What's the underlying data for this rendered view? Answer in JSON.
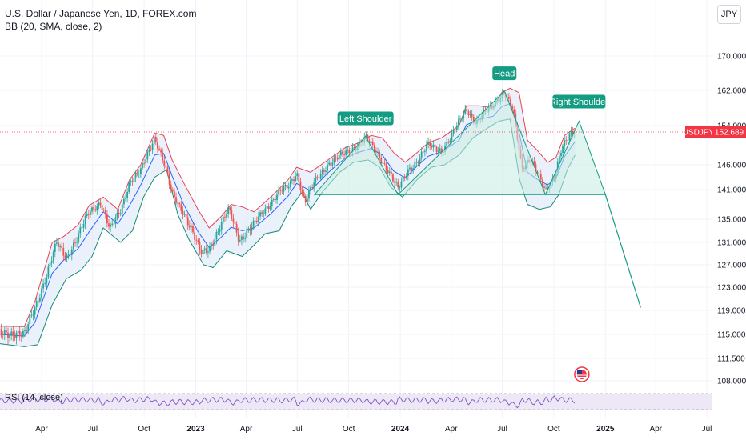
{
  "legend": {
    "title": "U.S. Dollar / Japanese Yen, 1D, FOREX.com",
    "indicator": "BB (20, SMA, close, 2)"
  },
  "currency": "JPY",
  "price_tag": {
    "symbol": "USDJPY",
    "value": "152.689"
  },
  "rsi_label": "RSI (14, close)",
  "colors": {
    "upper_band": "#e8424f",
    "lower_band": "#138a76",
    "basis": "#2962ff",
    "band_fill": "#e3ecf9",
    "candle_up": "#26a69a",
    "candle_down": "#ef5350",
    "pattern": "#149c82",
    "pattern_fill": "#c8ece3",
    "rsi_line": "#7e57c2",
    "rsi_band": "#ede7f6",
    "price_tag": "#f23645"
  },
  "chart_data": {
    "type": "line",
    "title": "U.S. Dollar / Japanese Yen, 1D, FOREX.com",
    "y_axis_ticks": [
      "170.000",
      "162.000",
      "154.000",
      "146.000",
      "141.000",
      "135.000",
      "131.000",
      "127.000",
      "123.000",
      "119.000",
      "115.000",
      "111.500",
      "108.000"
    ],
    "x_axis_ticks": [
      {
        "label": "Apr",
        "date": "2022-04-01",
        "bold": false
      },
      {
        "label": "Jul",
        "date": "2022-07-01",
        "bold": false
      },
      {
        "label": "Oct",
        "date": "2022-10-01",
        "bold": false
      },
      {
        "label": "2023",
        "date": "2023-01-01",
        "bold": true
      },
      {
        "label": "Apr",
        "date": "2023-04-01",
        "bold": false
      },
      {
        "label": "Jul",
        "date": "2023-07-01",
        "bold": false
      },
      {
        "label": "Oct",
        "date": "2023-10-01",
        "bold": false
      },
      {
        "label": "2024",
        "date": "2024-01-01",
        "bold": true
      },
      {
        "label": "Apr",
        "date": "2024-04-01",
        "bold": false
      },
      {
        "label": "Jul",
        "date": "2024-07-01",
        "bold": false
      },
      {
        "label": "Oct",
        "date": "2024-10-01",
        "bold": false
      },
      {
        "label": "2025",
        "date": "2025-01-01",
        "bold": true
      },
      {
        "label": "Apr",
        "date": "2025-04-01",
        "bold": false
      },
      {
        "label": "Jul",
        "date": "2025-07-01",
        "bold": false
      }
    ],
    "price_series": [
      [
        "2022-01-01",
        115.0
      ],
      [
        "2022-02-15",
        115.3
      ],
      [
        "2022-03-01",
        114.8
      ],
      [
        "2022-03-20",
        119.5
      ],
      [
        "2022-04-10",
        125.2
      ],
      [
        "2022-04-28",
        130.8
      ],
      [
        "2022-05-15",
        128.4
      ],
      [
        "2022-06-05",
        132.0
      ],
      [
        "2022-06-25",
        136.4
      ],
      [
        "2022-07-15",
        138.5
      ],
      [
        "2022-08-01",
        133.0
      ],
      [
        "2022-08-20",
        136.8
      ],
      [
        "2022-09-05",
        142.6
      ],
      [
        "2022-09-25",
        144.7
      ],
      [
        "2022-10-20",
        151.8
      ],
      [
        "2022-11-05",
        146.5
      ],
      [
        "2022-11-20",
        140.0
      ],
      [
        "2022-12-10",
        136.5
      ],
      [
        "2022-12-25",
        133.0
      ],
      [
        "2023-01-10",
        129.0
      ],
      [
        "2023-01-25",
        130.0
      ],
      [
        "2023-02-15",
        134.0
      ],
      [
        "2023-03-01",
        136.8
      ],
      [
        "2023-03-20",
        131.5
      ],
      [
        "2023-04-15",
        134.0
      ],
      [
        "2023-05-01",
        136.5
      ],
      [
        "2023-05-30",
        140.5
      ],
      [
        "2023-06-15",
        141.5
      ],
      [
        "2023-06-30",
        144.5
      ],
      [
        "2023-07-15",
        138.5
      ],
      [
        "2023-08-01",
        142.5
      ],
      [
        "2023-08-25",
        146.2
      ],
      [
        "2023-09-20",
        148.0
      ],
      [
        "2023-10-10",
        149.5
      ],
      [
        "2023-10-31",
        151.5
      ],
      [
        "2023-11-20",
        148.5
      ],
      [
        "2023-12-10",
        145.0
      ],
      [
        "2023-12-28",
        141.0
      ],
      [
        "2024-01-15",
        145.0
      ],
      [
        "2024-02-01",
        146.8
      ],
      [
        "2024-02-20",
        150.0
      ],
      [
        "2024-03-15",
        149.0
      ],
      [
        "2024-04-01",
        151.5
      ],
      [
        "2024-04-28",
        158.0
      ],
      [
        "2024-05-15",
        154.5
      ],
      [
        "2024-06-01",
        157.0
      ],
      [
        "2024-06-26",
        160.5
      ],
      [
        "2024-07-05",
        161.5
      ],
      [
        "2024-07-20",
        157.5
      ],
      [
        "2024-08-05",
        145.5
      ],
      [
        "2024-08-20",
        147.5
      ],
      [
        "2024-09-16",
        140.5
      ],
      [
        "2024-10-01",
        143.5
      ],
      [
        "2024-10-15",
        149.5
      ],
      [
        "2024-10-31",
        152.0
      ],
      [
        "2024-11-08",
        152.689
      ]
    ],
    "upper_band": [
      [
        "2022-01-01",
        116.4
      ],
      [
        "2022-03-01",
        116.3
      ],
      [
        "2022-03-20",
        120.5
      ],
      [
        "2022-04-20",
        131.0
      ],
      [
        "2022-05-10",
        132.0
      ],
      [
        "2022-06-05",
        134.0
      ],
      [
        "2022-06-25",
        137.8
      ],
      [
        "2022-07-20",
        139.5
      ],
      [
        "2022-08-15",
        137.0
      ],
      [
        "2022-09-05",
        143.0
      ],
      [
        "2022-09-25",
        146.0
      ],
      [
        "2022-10-20",
        152.5
      ],
      [
        "2022-11-05",
        152.0
      ],
      [
        "2022-11-20",
        147.0
      ],
      [
        "2022-12-10",
        142.5
      ],
      [
        "2023-01-05",
        137.0
      ],
      [
        "2023-01-25",
        133.5
      ],
      [
        "2023-02-15",
        135.5
      ],
      [
        "2023-03-05",
        138.0
      ],
      [
        "2023-03-25",
        137.5
      ],
      [
        "2023-04-15",
        136.5
      ],
      [
        "2023-05-15",
        139.5
      ],
      [
        "2023-06-15",
        143.0
      ],
      [
        "2023-06-30",
        145.5
      ],
      [
        "2023-07-25",
        144.5
      ],
      [
        "2023-08-25",
        147.0
      ],
      [
        "2023-09-25",
        149.5
      ],
      [
        "2023-10-20",
        150.5
      ],
      [
        "2023-11-10",
        152.0
      ],
      [
        "2023-11-30",
        151.5
      ],
      [
        "2023-12-20",
        148.5
      ],
      [
        "2024-01-10",
        146.5
      ],
      [
        "2024-01-31",
        148.5
      ],
      [
        "2024-02-20",
        150.5
      ],
      [
        "2024-03-15",
        151.5
      ],
      [
        "2024-04-15",
        154.0
      ],
      [
        "2024-04-28",
        158.5
      ],
      [
        "2024-05-20",
        158.5
      ],
      [
        "2024-06-15",
        158.0
      ],
      [
        "2024-06-30",
        161.5
      ],
      [
        "2024-07-15",
        162.5
      ],
      [
        "2024-07-31",
        161.5
      ],
      [
        "2024-08-15",
        151.0
      ],
      [
        "2024-09-01",
        149.0
      ],
      [
        "2024-09-20",
        146.5
      ],
      [
        "2024-10-05",
        147.5
      ],
      [
        "2024-10-20",
        152.0
      ],
      [
        "2024-11-08",
        153.5
      ]
    ],
    "lower_band": [
      [
        "2022-01-01",
        113.8
      ],
      [
        "2022-03-01",
        113.2
      ],
      [
        "2022-03-25",
        113.5
      ],
      [
        "2022-04-20",
        120.0
      ],
      [
        "2022-05-15",
        124.5
      ],
      [
        "2022-06-10",
        126.0
      ],
      [
        "2022-06-30",
        128.5
      ],
      [
        "2022-07-20",
        133.5
      ],
      [
        "2022-08-20",
        131.0
      ],
      [
        "2022-09-10",
        133.0
      ],
      [
        "2022-09-30",
        139.5
      ],
      [
        "2022-10-20",
        143.5
      ],
      [
        "2022-11-10",
        145.0
      ],
      [
        "2022-11-30",
        136.0
      ],
      [
        "2022-12-20",
        131.5
      ],
      [
        "2023-01-15",
        127.0
      ],
      [
        "2023-02-01",
        126.5
      ],
      [
        "2023-02-25",
        129.5
      ],
      [
        "2023-03-25",
        128.5
      ],
      [
        "2023-04-15",
        130.5
      ],
      [
        "2023-05-05",
        132.5
      ],
      [
        "2023-05-30",
        133.0
      ],
      [
        "2023-06-20",
        137.5
      ],
      [
        "2023-07-10",
        140.5
      ],
      [
        "2023-07-25",
        137.0
      ],
      [
        "2023-08-15",
        140.5
      ],
      [
        "2023-09-15",
        144.5
      ],
      [
        "2023-10-10",
        146.5
      ],
      [
        "2023-11-05",
        147.0
      ],
      [
        "2023-11-25",
        145.5
      ],
      [
        "2023-12-15",
        141.5
      ],
      [
        "2024-01-05",
        139.5
      ],
      [
        "2024-01-31",
        143.0
      ],
      [
        "2024-02-25",
        145.5
      ],
      [
        "2024-03-20",
        146.0
      ],
      [
        "2024-04-15",
        148.0
      ],
      [
        "2024-05-10",
        151.5
      ],
      [
        "2024-06-05",
        153.5
      ],
      [
        "2024-06-25",
        155.0
      ],
      [
        "2024-07-15",
        155.5
      ],
      [
        "2024-08-01",
        143.0
      ],
      [
        "2024-08-15",
        138.0
      ],
      [
        "2024-09-05",
        137.0
      ],
      [
        "2024-09-25",
        137.5
      ],
      [
        "2024-10-10",
        140.0
      ],
      [
        "2024-10-25",
        145.0
      ],
      [
        "2024-11-08",
        148.0
      ]
    ],
    "pattern": {
      "labels": [
        "Left Shoulder",
        "Head",
        "Right Shoulder"
      ],
      "neckline": 140.0,
      "points": [
        [
          "2023-08-01",
          140.0
        ],
        [
          "2023-10-31",
          151.8
        ],
        [
          "2023-12-28",
          140.0
        ],
        [
          "2024-07-05",
          161.8
        ],
        [
          "2024-09-16",
          140.0
        ],
        [
          "2024-11-15",
          155.0
        ],
        [
          "2025-01-01",
          140.0
        ]
      ],
      "target_line": [
        [
          "2025-01-01",
          140.0
        ],
        [
          "2025-03-05",
          119.5
        ]
      ]
    }
  }
}
